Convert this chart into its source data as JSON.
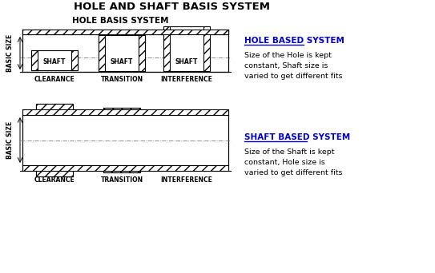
{
  "title": "HOLE AND SHAFT BASIS SYSTEM",
  "bg_color": "#ffffff",
  "line_color": "#000000",
  "hole_basis_label": "HOLE BASIS SYSTEM",
  "hole_based_system_title": "HOLE BASED SYSTEM",
  "hole_based_desc": "Size of the Hole is kept\nconstant, Shaft size is\nvaried to get different fits",
  "shaft_based_system_title": "SHAFT BASED SYSTEM",
  "shaft_based_desc": "Size of the Shaft is kept\nconstant, Hole size is\nvaried to get different fits",
  "fit_labels_hole": [
    "CLEARANCE",
    "TRANSITION",
    "INTERFERENCE"
  ],
  "fit_labels_shaft": [
    "CLEARANCE",
    "TRANSITION",
    "INTERFERENCE"
  ],
  "basic_size_label": "BASIC SIZE",
  "shaft_label": "SHAFT",
  "title_color": "#0000cc"
}
